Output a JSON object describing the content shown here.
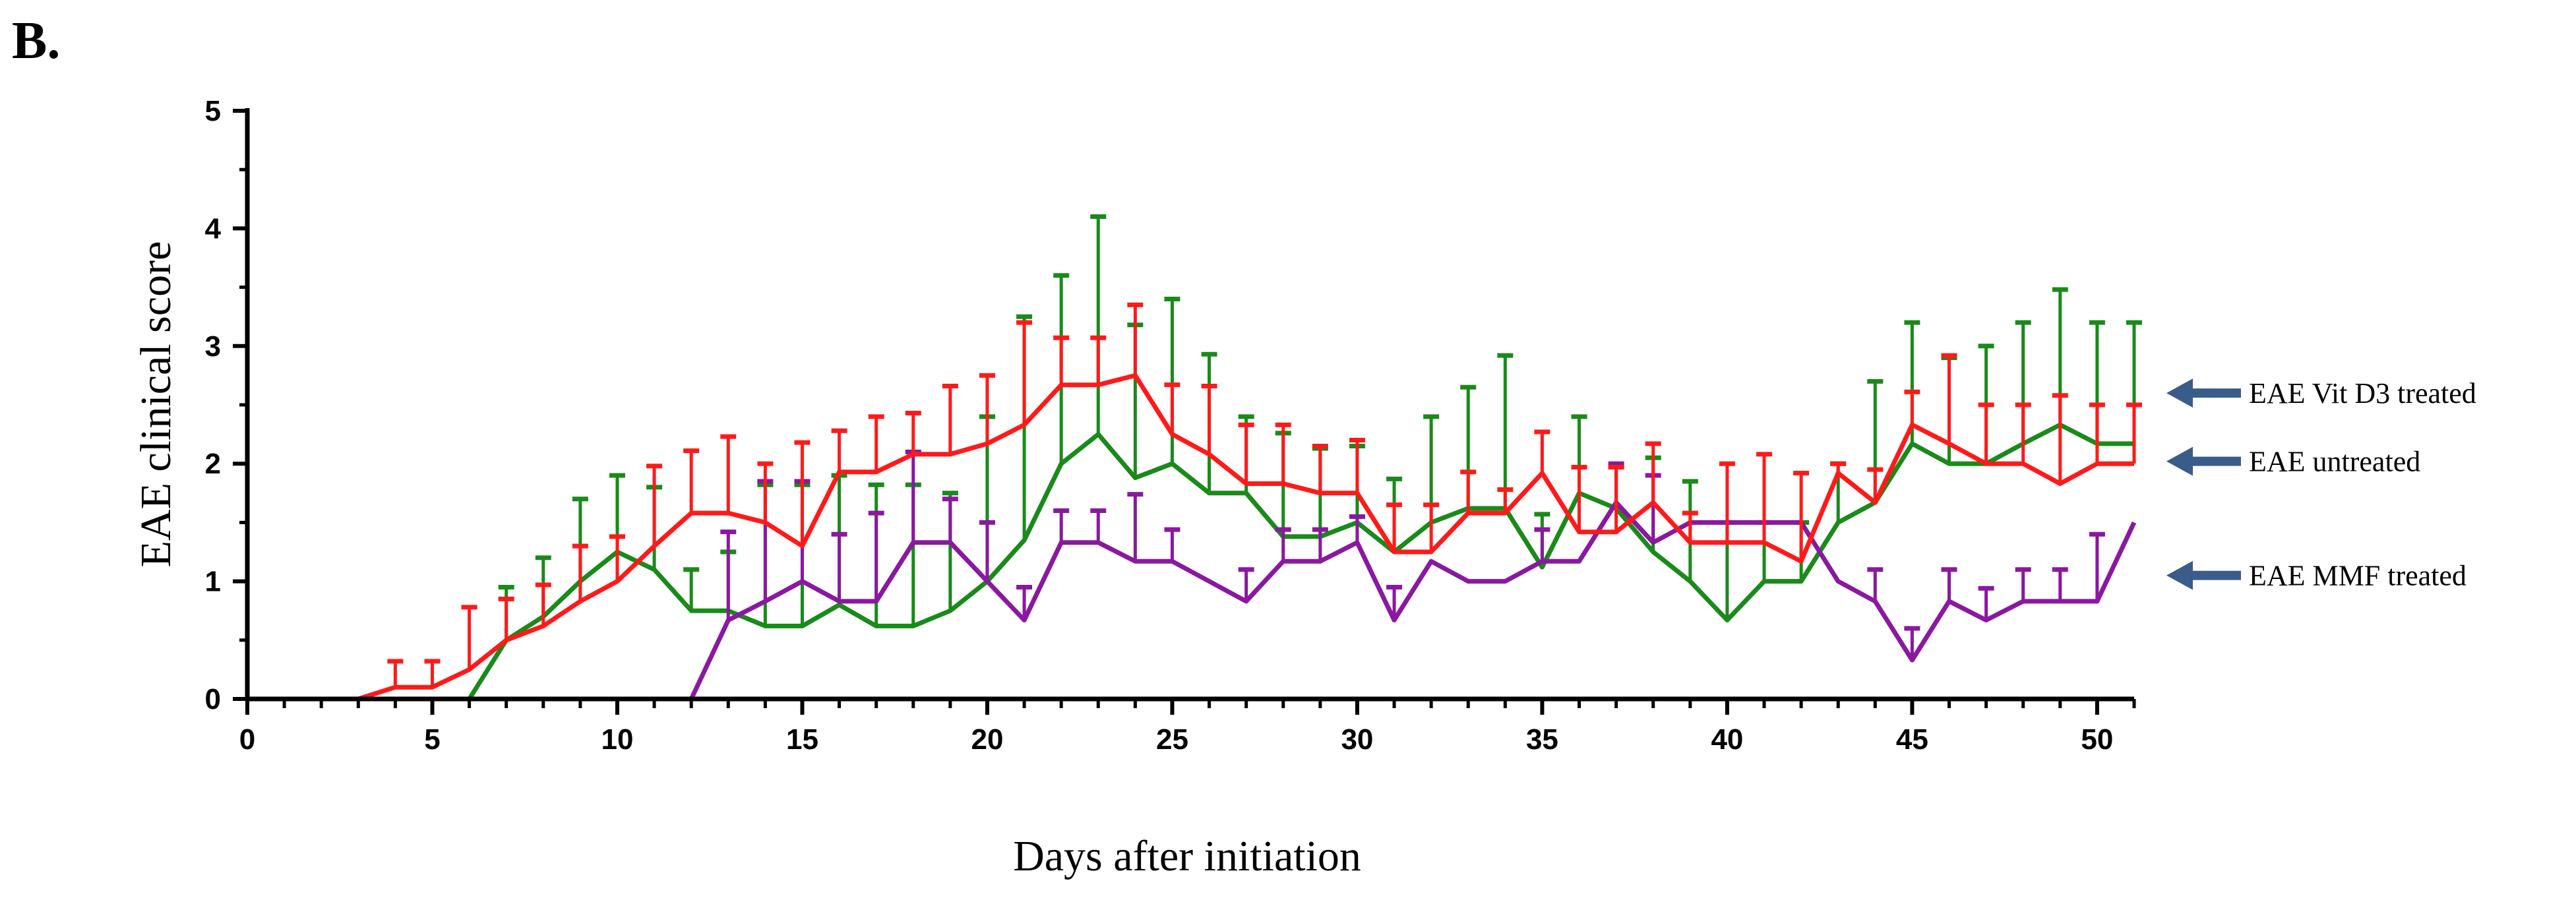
{
  "chart_data": {
    "type": "line",
    "panel_label": "B.",
    "title": "",
    "xlabel": "Days after initiation",
    "ylabel": "EAE clinical score",
    "xlim": [
      0,
      51
    ],
    "ylim": [
      0,
      5
    ],
    "xticks": [
      0,
      5,
      10,
      15,
      20,
      25,
      30,
      35,
      40,
      45,
      50
    ],
    "yticks": [
      0,
      1,
      2,
      3,
      4,
      5
    ],
    "colors": {
      "EAE untreated": "#1a8a1a",
      "EAE Vit D3 treated": "#ff1a1a",
      "EAE MMF treated": "#8a18a0",
      "arrow": "#3a5c8a",
      "axis": "#000000"
    },
    "x": [
      1,
      2,
      3,
      4,
      5,
      6,
      7,
      8,
      9,
      10,
      11,
      12,
      13,
      14,
      15,
      16,
      17,
      18,
      19,
      20,
      21,
      22,
      23,
      24,
      25,
      26,
      27,
      28,
      29,
      30,
      31,
      32,
      33,
      34,
      35,
      36,
      37,
      38,
      39,
      40,
      41,
      42,
      43,
      44,
      45,
      46,
      47,
      48,
      49,
      50,
      51
    ],
    "series": [
      {
        "name": "EAE untreated",
        "values": [
          0,
          0,
          0,
          0,
          0,
          0,
          0.5,
          0.7,
          1.0,
          1.25,
          1.1,
          0.75,
          0.75,
          0.62,
          0.62,
          0.8,
          0.62,
          0.62,
          0.75,
          1.0,
          1.35,
          2.0,
          2.25,
          1.88,
          2.0,
          1.75,
          1.75,
          1.38,
          1.38,
          1.5,
          1.25,
          1.5,
          1.62,
          1.62,
          1.12,
          1.75,
          1.62,
          1.25,
          1.0,
          0.67,
          1.0,
          1.0,
          1.5,
          1.67,
          2.17,
          2.0,
          2.0,
          2.17,
          2.33,
          2.17,
          2.17
        ],
        "errors": [
          0,
          0,
          0,
          0,
          0,
          0,
          0.45,
          0.5,
          0.7,
          0.65,
          0.7,
          0.35,
          0.5,
          1.2,
          1.2,
          1.1,
          1.2,
          1.2,
          1.0,
          1.4,
          1.9,
          1.6,
          1.85,
          1.3,
          1.4,
          1.18,
          0.65,
          0.88,
          0.75,
          0.65,
          0.62,
          0.9,
          1.03,
          1.3,
          0.45,
          0.65,
          0.35,
          0.8,
          0.85,
          0.83,
          0.5,
          0.5,
          0.5,
          1.03,
          1.03,
          0.9,
          1.0,
          1.03,
          1.15,
          1.03,
          1.03
        ]
      },
      {
        "name": "EAE Vit D3 treated",
        "values": [
          0,
          0,
          0,
          0.1,
          0.1,
          0.25,
          0.5,
          0.62,
          0.83,
          1.0,
          1.3,
          1.58,
          1.58,
          1.5,
          1.3,
          1.93,
          1.93,
          2.08,
          2.08,
          2.17,
          2.33,
          2.67,
          2.67,
          2.75,
          2.25,
          2.08,
          1.83,
          1.83,
          1.75,
          1.75,
          1.25,
          1.25,
          1.58,
          1.58,
          1.92,
          1.42,
          1.42,
          1.67,
          1.33,
          1.33,
          1.33,
          1.17,
          1.92,
          1.67,
          2.33,
          2.17,
          2.0,
          2.0,
          1.83,
          2.0,
          2.0
        ],
        "errors": [
          0,
          0,
          0,
          0.22,
          0.22,
          0.53,
          0.35,
          0.35,
          0.47,
          0.38,
          0.68,
          0.53,
          0.65,
          0.5,
          0.88,
          0.35,
          0.47,
          0.35,
          0.58,
          0.58,
          0.87,
          0.4,
          0.4,
          0.6,
          0.42,
          0.58,
          0.5,
          0.5,
          0.4,
          0.45,
          0.4,
          0.4,
          0.35,
          0.2,
          0.35,
          0.55,
          0.55,
          0.5,
          0.25,
          0.67,
          0.75,
          0.75,
          0.08,
          0.28,
          0.28,
          0.75,
          0.5,
          0.5,
          0.75,
          0.5,
          0.5
        ]
      },
      {
        "name": "EAE MMF treated",
        "values": [
          0,
          0,
          0,
          0,
          0,
          0,
          0,
          0,
          0,
          0,
          0,
          0,
          0.67,
          0.83,
          1.0,
          0.83,
          0.83,
          1.33,
          1.33,
          1.0,
          0.67,
          1.33,
          1.33,
          1.17,
          1.17,
          1.0,
          0.83,
          1.17,
          1.17,
          1.33,
          0.67,
          1.17,
          1.0,
          1.0,
          1.17,
          1.17,
          1.67,
          1.33,
          1.5,
          1.5,
          1.5,
          1.5,
          1.0,
          0.83,
          0.33,
          0.83,
          0.67,
          0.83,
          0.83,
          0.83,
          1.5
        ],
        "errors": [
          0,
          0,
          0,
          0,
          0,
          0,
          0,
          0,
          0,
          0,
          0,
          0,
          0.75,
          1.02,
          0.85,
          0.57,
          0.75,
          0.77,
          0.37,
          0.5,
          0.28,
          0.27,
          0.27,
          0.57,
          0.27,
          0,
          0.27,
          0.27,
          0.27,
          0.22,
          0.28,
          0,
          0,
          0,
          0.27,
          0,
          0.33,
          0.57,
          0,
          0,
          0,
          0,
          0,
          0.27,
          0.27,
          0.27,
          0.27,
          0.27,
          0.27,
          0.57,
          0
        ]
      }
    ],
    "legend": [
      {
        "label": "EAE Vit D3 treated",
        "points_to": "EAE Vit D3 treated",
        "y": 2.6
      },
      {
        "label": "EAE untreated",
        "points_to": "EAE untreated",
        "y": 2.02
      },
      {
        "label": "EAE MMF treated",
        "points_to": "EAE MMF treated",
        "y": 1.05
      }
    ]
  }
}
